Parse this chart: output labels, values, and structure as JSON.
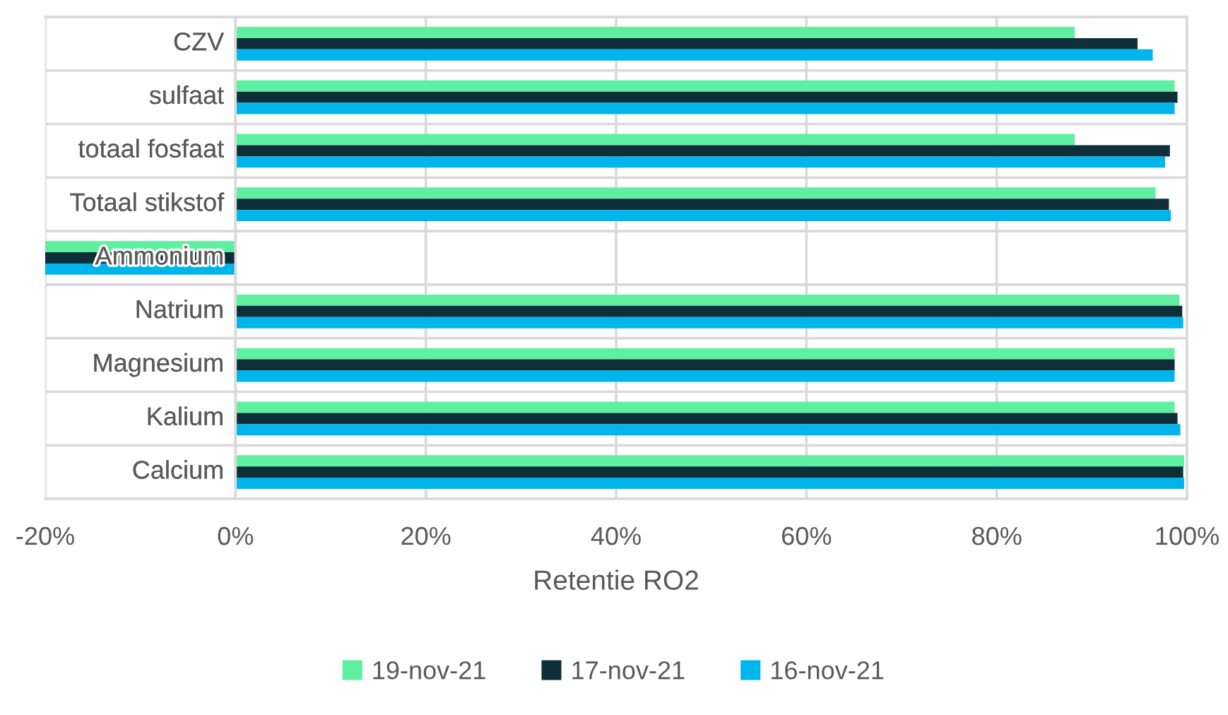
{
  "chart_data": {
    "type": "bar",
    "orientation": "horizontal",
    "xlabel": "Retentie RO2",
    "categories": [
      "CZV",
      "sulfaat",
      "totaal fosfaat",
      "Totaal stikstof",
      "Ammonium",
      "Natrium",
      "Magnesium",
      "Kalium",
      "Calcium"
    ],
    "series": [
      {
        "name": "19-nov-21",
        "color": "#5ef0a0",
        "values": [
          88.2,
          98.7,
          88.2,
          96.7,
          -20,
          99.2,
          98.7,
          98.7,
          99.7
        ]
      },
      {
        "name": "17-nov-21",
        "color": "#0e2f3a",
        "values": [
          94.8,
          99.0,
          98.2,
          98.1,
          -20,
          99.5,
          98.7,
          99.0,
          99.6
        ]
      },
      {
        "name": "16-nov-21",
        "color": "#00b4ec",
        "values": [
          96.4,
          98.7,
          97.7,
          98.3,
          -20,
          99.6,
          98.7,
          99.3,
          99.7
        ]
      }
    ],
    "xlim": [
      -20,
      100
    ],
    "xticks": [
      {
        "value": -20,
        "label": "-20%"
      },
      {
        "value": 0,
        "label": "0%"
      },
      {
        "value": 20,
        "label": "20%"
      },
      {
        "value": 40,
        "label": "40%"
      },
      {
        "value": 60,
        "label": "60%"
      },
      {
        "value": 80,
        "label": "80%"
      },
      {
        "value": 100,
        "label": "100%"
      }
    ],
    "grid": true,
    "legend": "bottom"
  }
}
